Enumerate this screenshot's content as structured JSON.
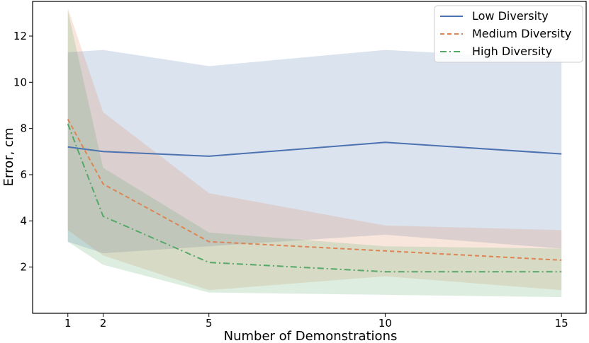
{
  "chart_data": {
    "type": "line",
    "title": "",
    "xlabel": "Number of Demonstrations",
    "ylabel": "Error, cm",
    "xlim": [
      0.0,
      15.7
    ],
    "ylim": [
      0.0,
      13.5
    ],
    "xticks": [
      1,
      2,
      5,
      10,
      15
    ],
    "yticks": [
      2,
      4,
      6,
      8,
      10,
      12
    ],
    "x": [
      1,
      2,
      5,
      10,
      15
    ],
    "legend_position": "top-right",
    "series": [
      {
        "name": "Low Diversity",
        "color": "#4c72b0",
        "style": "solid",
        "values": [
          7.2,
          7.0,
          6.8,
          7.4,
          6.9
        ],
        "upper": [
          11.3,
          11.4,
          10.7,
          11.4,
          11.0
        ],
        "lower": [
          3.1,
          2.6,
          2.9,
          3.4,
          2.8
        ],
        "band_color": "#4c72b0"
      },
      {
        "name": "Medium Diversity",
        "color": "#dd8452",
        "style": "dashed",
        "values": [
          8.4,
          5.6,
          3.1,
          2.7,
          2.3
        ],
        "upper": [
          13.2,
          8.7,
          5.2,
          3.8,
          3.6
        ],
        "lower": [
          3.6,
          2.5,
          1.0,
          1.6,
          1.0
        ],
        "band_color": "#dd8452"
      },
      {
        "name": "High Diversity",
        "color": "#55a868",
        "style": "dashdot",
        "values": [
          8.2,
          4.2,
          2.2,
          1.8,
          1.8
        ],
        "upper": [
          13.1,
          6.3,
          3.5,
          2.9,
          2.8
        ],
        "lower": [
          3.1,
          2.1,
          0.9,
          0.8,
          0.7
        ],
        "band_color": "#55a868"
      }
    ]
  }
}
